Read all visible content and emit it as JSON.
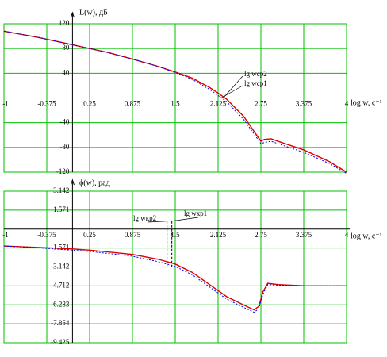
{
  "chart_data": [
    {
      "type": "line",
      "ylabel": "L(w), дБ",
      "xlabel": "log w, c⁻¹",
      "xlim": [
        -1,
        4
      ],
      "ylim": [
        -120,
        120
      ],
      "xticks": [
        -1,
        -0.375,
        0.25,
        0.875,
        1.5,
        2.125,
        2.75,
        3.375,
        4
      ],
      "yticks": [
        -120,
        -80,
        -40,
        40,
        80,
        120
      ],
      "grid": true,
      "grid_color": "#00c000",
      "x": [
        -1,
        -0.5,
        0,
        0.25,
        0.5,
        0.875,
        1.25,
        1.5,
        1.75,
        2,
        2.125,
        2.25,
        2.5,
        2.7,
        2.75,
        2.8,
        2.9,
        3,
        3.375,
        3.75,
        4
      ],
      "series": [
        {
          "color": "#e00000",
          "style": "solid",
          "values": [
            108,
            98,
            86,
            80,
            74,
            63,
            51,
            42,
            32,
            17,
            8,
            -2,
            -30,
            -62,
            -70,
            -67,
            -66,
            -70,
            -84,
            -103,
            -120
          ]
        },
        {
          "color": "#0000ff",
          "style": "dotted",
          "values": [
            108,
            98,
            86,
            80,
            74,
            63,
            51,
            41,
            30,
            14,
            4,
            -6,
            -35,
            -66,
            -74,
            -72,
            -70,
            -74,
            -88,
            -106,
            -122
          ]
        }
      ],
      "annotations": [
        {
          "text": "lg wср2",
          "x": 2.2
        },
        {
          "text": "lg wср1",
          "x": 2.17
        }
      ]
    },
    {
      "type": "line",
      "ylabel": "ϕ(w), рад",
      "xlabel": "log w, c⁻¹",
      "xlim": [
        -1,
        4
      ],
      "ylim": [
        -9.425,
        3.142
      ],
      "xticks": [
        -1,
        -0.375,
        0.25,
        0.875,
        1.5,
        2.125,
        2.75,
        3.375,
        4
      ],
      "yticks": [
        -9.425,
        -7.854,
        -6.283,
        -4.712,
        -3.142,
        -1.571,
        1.571,
        3.142
      ],
      "grid": true,
      "grid_color": "#00c000",
      "x": [
        -1,
        -0.375,
        0,
        0.25,
        0.875,
        1.25,
        1.5,
        1.75,
        2,
        2.25,
        2.5,
        2.65,
        2.72,
        2.78,
        2.85,
        3,
        3.375,
        4
      ],
      "series": [
        {
          "color": "#e00000",
          "style": "solid",
          "values": [
            -1.4,
            -1.55,
            -1.65,
            -1.75,
            -2.1,
            -2.5,
            -2.9,
            -3.6,
            -4.6,
            -5.6,
            -6.3,
            -6.7,
            -6.4,
            -5.2,
            -4.5,
            -4.6,
            -4.7,
            -4.71
          ]
        },
        {
          "color": "#0000ff",
          "style": "dotted",
          "values": [
            -1.4,
            -1.6,
            -1.75,
            -1.85,
            -2.25,
            -2.7,
            -3.1,
            -3.8,
            -4.8,
            -5.8,
            -6.5,
            -6.9,
            -6.6,
            -5.4,
            -4.6,
            -4.65,
            -4.7,
            -4.71
          ]
        }
      ],
      "annotations": [
        {
          "text": "lg wкр2",
          "x": 1.38
        },
        {
          "text": "lg wкр1",
          "x": 1.45
        }
      ]
    }
  ]
}
